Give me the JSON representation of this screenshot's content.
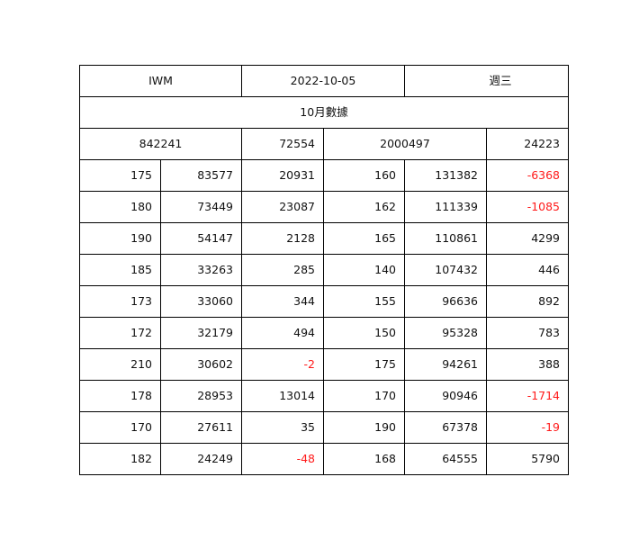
{
  "header": {
    "symbol": "IWM",
    "date": "2022-10-05",
    "weekday": "週三",
    "subtitle": "10月數據"
  },
  "totals": {
    "call_volume": "842241",
    "call_change": "72554",
    "put_volume": "2000497",
    "put_change": "24223"
  },
  "colors": {
    "negative": "#ff1a1a",
    "text": "#111111",
    "border": "#000000"
  },
  "rows": [
    {
      "call_strike": "175",
      "call_volume": "83577",
      "call_change": "20931",
      "put_strike": "160",
      "put_volume": "131382",
      "put_change": "-6368"
    },
    {
      "call_strike": "180",
      "call_volume": "73449",
      "call_change": "23087",
      "put_strike": "162",
      "put_volume": "111339",
      "put_change": "-1085"
    },
    {
      "call_strike": "190",
      "call_volume": "54147",
      "call_change": "2128",
      "put_strike": "165",
      "put_volume": "110861",
      "put_change": "4299"
    },
    {
      "call_strike": "185",
      "call_volume": "33263",
      "call_change": "285",
      "put_strike": "140",
      "put_volume": "107432",
      "put_change": "446"
    },
    {
      "call_strike": "173",
      "call_volume": "33060",
      "call_change": "344",
      "put_strike": "155",
      "put_volume": "96636",
      "put_change": "892"
    },
    {
      "call_strike": "172",
      "call_volume": "32179",
      "call_change": "494",
      "put_strike": "150",
      "put_volume": "95328",
      "put_change": "783"
    },
    {
      "call_strike": "210",
      "call_volume": "30602",
      "call_change": "-2",
      "put_strike": "175",
      "put_volume": "94261",
      "put_change": "388"
    },
    {
      "call_strike": "178",
      "call_volume": "28953",
      "call_change": "13014",
      "put_strike": "170",
      "put_volume": "90946",
      "put_change": "-1714"
    },
    {
      "call_strike": "170",
      "call_volume": "27611",
      "call_change": "35",
      "put_strike": "190",
      "put_volume": "67378",
      "put_change": "-19"
    },
    {
      "call_strike": "182",
      "call_volume": "24249",
      "call_change": "-48",
      "put_strike": "168",
      "put_volume": "64555",
      "put_change": "5790"
    }
  ]
}
